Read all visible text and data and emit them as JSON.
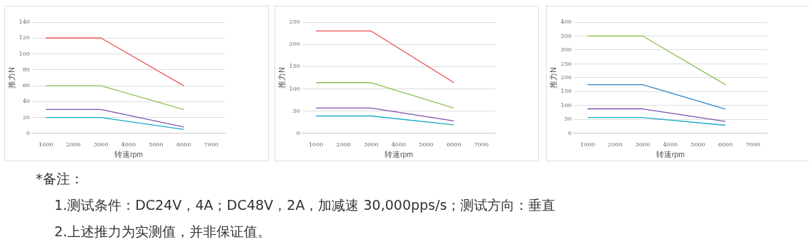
{
  "chart_data": [
    {
      "type": "line",
      "xlabel": "转速rpm",
      "ylabel": "推力N",
      "x": [
        1000,
        3000,
        6000
      ],
      "xlim": [
        500,
        7500
      ],
      "xticks": [
        1000,
        2000,
        3000,
        4000,
        5000,
        6000,
        7000
      ],
      "ylim": [
        0,
        140
      ],
      "yticks": [
        0,
        20,
        40,
        60,
        80,
        100,
        120,
        140
      ],
      "grid": "y",
      "series": [
        {
          "color": "#e8504f",
          "values": [
            120,
            120,
            60
          ]
        },
        {
          "color": "#8cc152",
          "values": [
            60,
            60,
            30
          ]
        },
        {
          "color": "#7b52ab",
          "values": [
            30,
            30,
            8
          ]
        },
        {
          "color": "#17a9c6",
          "values": [
            20,
            20,
            5
          ]
        }
      ]
    },
    {
      "type": "line",
      "xlabel": "转速rpm",
      "ylabel": "推力N",
      "x": [
        1000,
        3000,
        6000
      ],
      "xlim": [
        500,
        7500
      ],
      "xticks": [
        1000,
        2000,
        3000,
        4000,
        5000,
        6000,
        7000
      ],
      "ylim": [
        0,
        250
      ],
      "yticks": [
        0,
        50,
        100,
        150,
        200,
        250
      ],
      "grid": "y",
      "series": [
        {
          "color": "#e8504f",
          "values": [
            230,
            230,
            114
          ]
        },
        {
          "color": "#8cc152",
          "values": [
            114,
            114,
            57
          ]
        },
        {
          "color": "#7b52ab",
          "values": [
            57,
            57,
            28
          ]
        },
        {
          "color": "#17a9c6",
          "values": [
            39,
            39,
            19
          ]
        }
      ]
    },
    {
      "type": "line",
      "xlabel": "转速rpm",
      "ylabel": "推力N",
      "x": [
        1000,
        3000,
        6000
      ],
      "xlim": [
        500,
        7500
      ],
      "xticks": [
        1000,
        2000,
        3000,
        4000,
        5000,
        6000,
        7000
      ],
      "ylim": [
        0,
        400
      ],
      "yticks": [
        0,
        50,
        100,
        150,
        200,
        250,
        300,
        350,
        400
      ],
      "grid": "y",
      "series": [
        {
          "color": "#8cc152",
          "values": [
            350,
            350,
            175
          ]
        },
        {
          "color": "#2e86c8",
          "values": [
            175,
            175,
            87
          ]
        },
        {
          "color": "#7b52ab",
          "values": [
            88,
            88,
            43
          ]
        },
        {
          "color": "#17a9c6",
          "values": [
            57,
            57,
            29
          ]
        }
      ]
    },
    {
      "type": "other",
      "annotations": [
        "*备注：",
        "1.测试条件：DC24V，4A；DC48V，2A，加减速 30,000pps/s；测试方向：垂直",
        "2.上述推力为实测值，并非保证值。"
      ]
    }
  ]
}
